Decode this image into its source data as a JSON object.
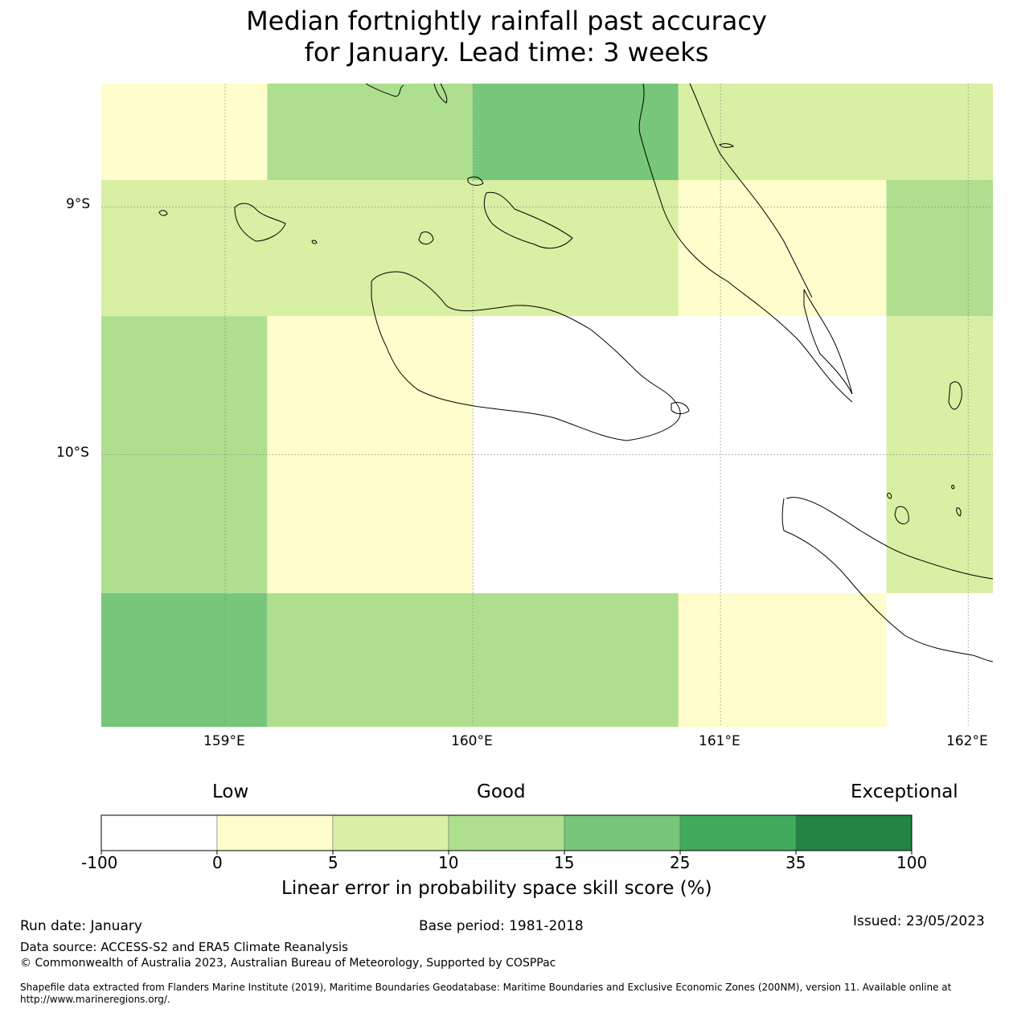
{
  "title": {
    "line1": "Median fortnightly rainfall past accuracy",
    "line2": "for January. Lead time: 3 weeks"
  },
  "colors": {
    "bins": [
      "#ffffff",
      "#fefdcb",
      "#d9efa3",
      "#addf8e",
      "#78c679",
      "#41ab5d",
      "#238443"
    ]
  },
  "chart_data": {
    "type": "heatmap",
    "title": "Median fortnightly rainfall past accuracy for January. Lead time: 3 weeks",
    "x_ticks": [
      "159°E",
      "160°E",
      "161°E",
      "162°E"
    ],
    "y_ticks": [
      "9°S",
      "10°S"
    ],
    "xlim_deg_e": [
      158.5,
      162.1
    ],
    "ylim_deg_s": [
      8.5,
      11.1
    ],
    "x_tick_values": [
      159,
      160,
      161,
      162
    ],
    "y_tick_values": [
      9,
      10
    ],
    "cell_edges_lon": [
      158.5,
      159.17,
      160.0,
      160.83,
      161.67,
      162.1
    ],
    "cell_edges_lat": [
      8.5,
      8.89,
      9.44,
      10.56,
      11.1
    ],
    "cell_bins": [
      [
        1,
        3,
        4,
        2,
        2
      ],
      [
        2,
        2,
        2,
        1,
        3
      ],
      [
        3,
        1,
        0,
        0,
        2
      ],
      [
        4,
        3,
        3,
        1,
        0
      ]
    ],
    "colorbar": {
      "ticks": [
        "-100",
        "0",
        "5",
        "10",
        "15",
        "25",
        "35",
        "100"
      ],
      "tick_values": [
        -100,
        0,
        5,
        10,
        15,
        25,
        35,
        100
      ],
      "categories": [
        "Low",
        "Good",
        "Exceptional"
      ],
      "label": "Linear error in probability space skill score (%)"
    }
  },
  "footer": {
    "run_date": "Run date: January",
    "base_period": "Base period: 1981-2018",
    "issued": "Issued: 23/05/2023",
    "data_source": "Data source: ACCESS-S2 and ERA5 Climate Reanalysis",
    "copyright": "© Commonwealth of Australia 2023, Australian Bureau of Meteorology, Supported by COSPPac",
    "shapefile": "Shapefile data extracted from Flanders Marine Institute (2019), Maritime Boundaries Geodatabase: Maritime Boundaries and Exclusive Economic Zones (200NM), version 11. Available online at http://www.marineregions.org/."
  },
  "icons": [
    "coastline-outline"
  ]
}
